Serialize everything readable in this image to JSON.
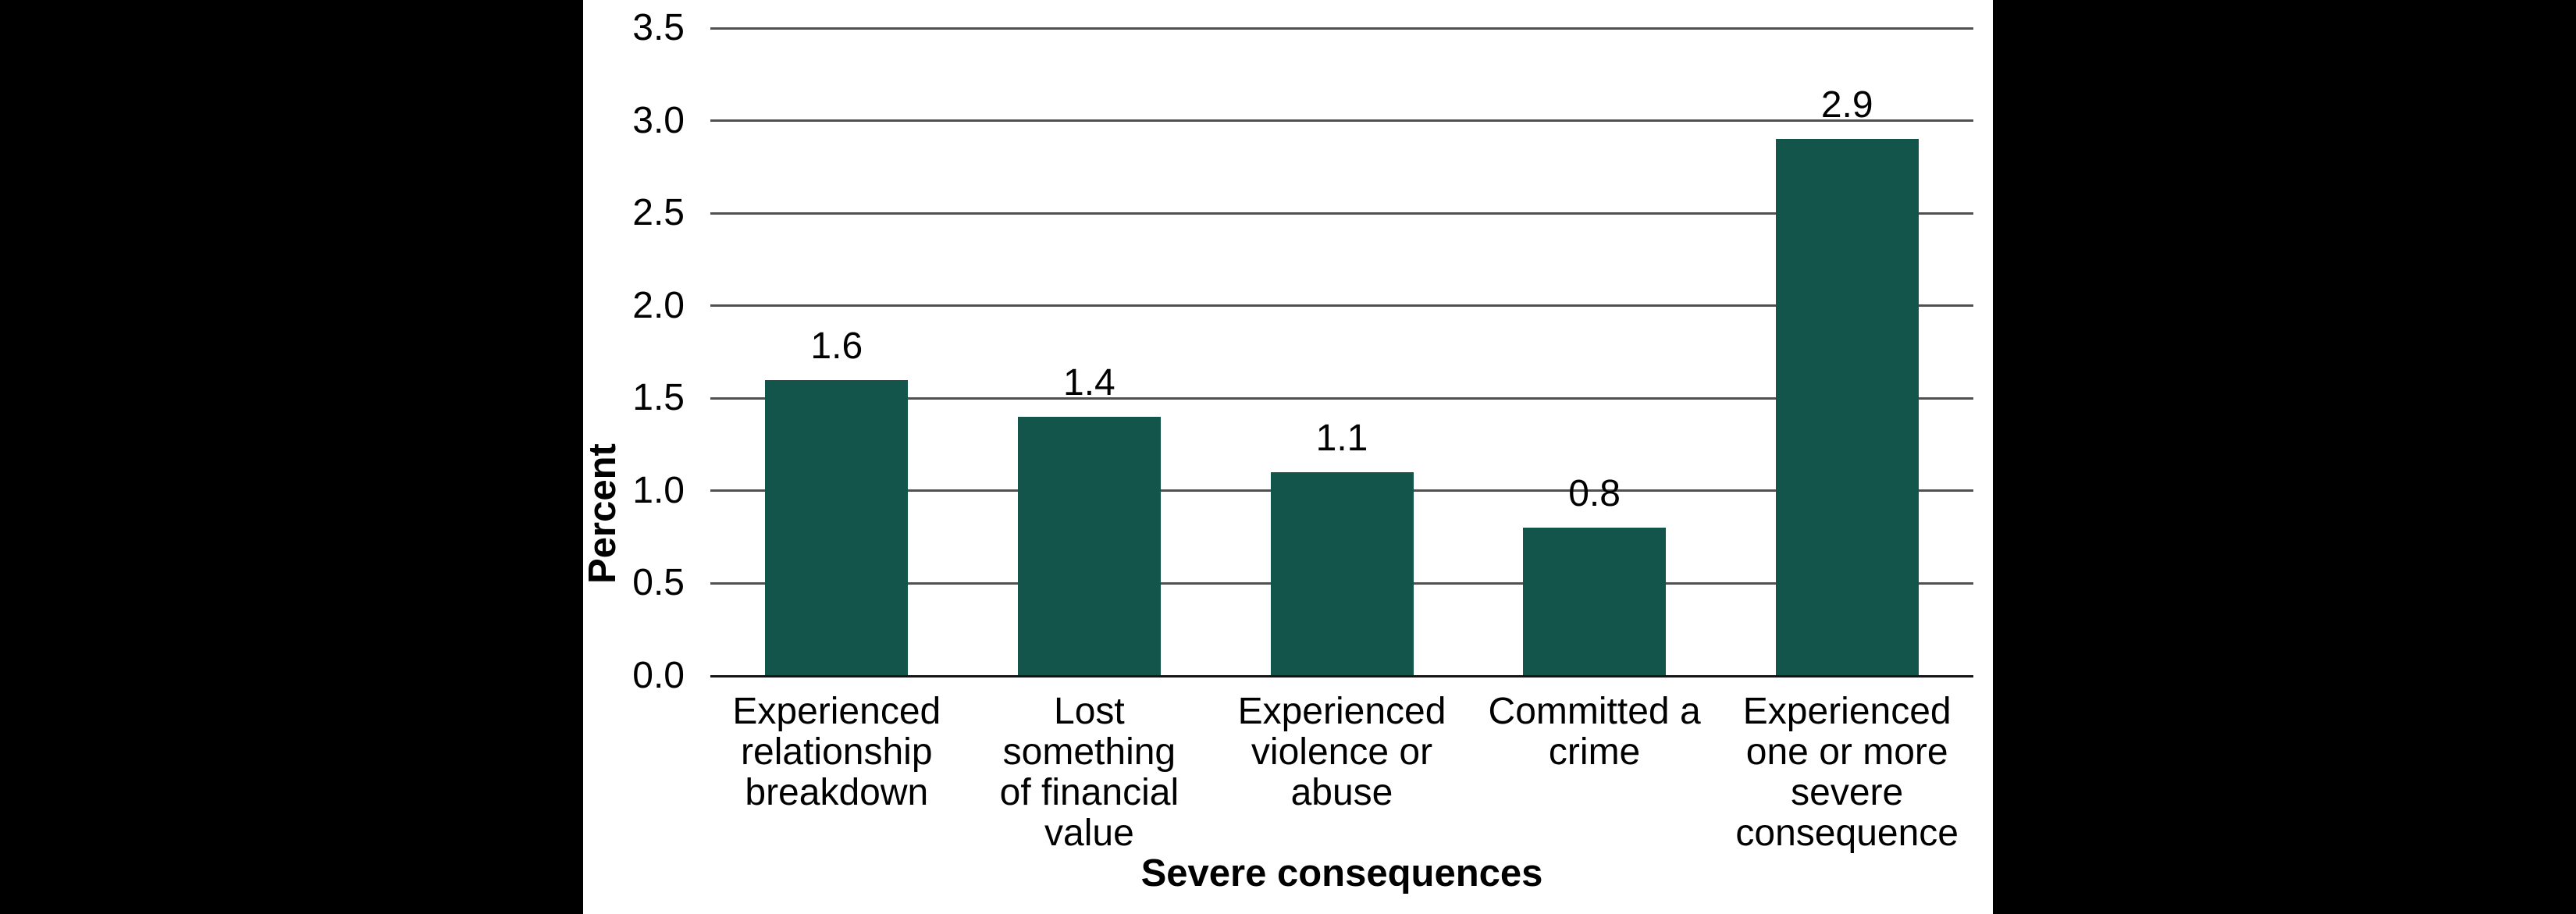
{
  "chart_data": {
    "type": "bar",
    "title": "",
    "xlabel": "Severe consequences",
    "ylabel": "Percent",
    "categories": [
      "Experienced\nrelationship\nbreakdown",
      "Lost something\nof financial\nvalue",
      "Experienced\nviolence or\nabuse",
      "Committed a\ncrime",
      "Experienced\none or more\nsevere\nconsequence"
    ],
    "values": [
      1.6,
      1.4,
      1.1,
      0.8,
      2.9
    ],
    "bar_value_labels": [
      "1.6",
      "1.4",
      "1.1",
      "0.8",
      "2.9"
    ],
    "ylim": [
      0.0,
      3.5
    ],
    "ytick_labels": [
      "0.0",
      "0.5",
      "1.0",
      "1.5",
      "2.0",
      "2.5",
      "3.0",
      "3.5"
    ],
    "grid": "horizontal",
    "legend": "none",
    "bar_color": "#13554B"
  },
  "colors": {
    "page_background": "#000000",
    "chart_background": "#ffffff",
    "gridline": "#505050",
    "axis_line": "#141414",
    "text": "#000000",
    "bar_fill": "#13554B"
  }
}
